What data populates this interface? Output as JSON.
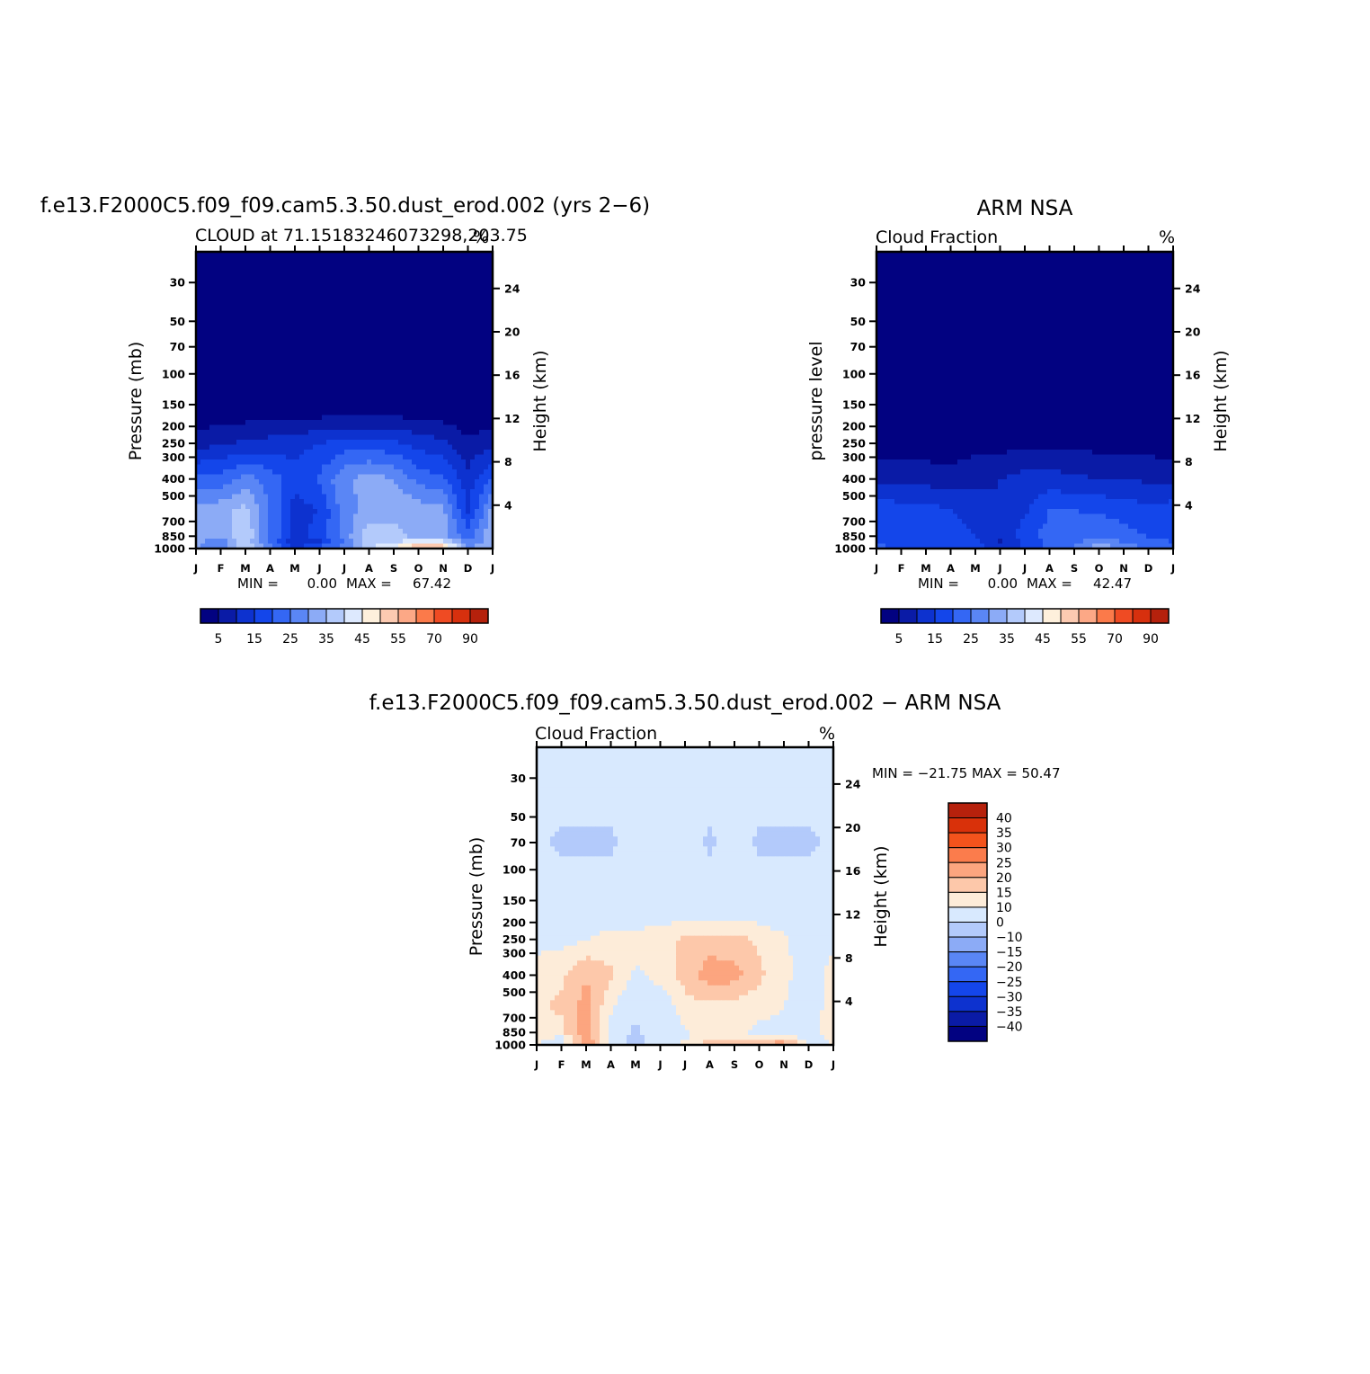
{
  "colors": {
    "cloud_scale": [
      "#020281",
      "#0a1ba6",
      "#0d32cf",
      "#1446ea",
      "#3467f4",
      "#5a86f5",
      "#8cabf6",
      "#b3cafb",
      "#dde9fe",
      "#fef0dc",
      "#fccab1",
      "#fca886",
      "#fb7a4a",
      "#ef4b23",
      "#d7300e",
      "#b5210c",
      "#8a0c06"
    ],
    "diff_scale": [
      "#020281",
      "#0a1ba6",
      "#0d32cf",
      "#1446ea",
      "#3467f4",
      "#5a86f5",
      "#8cabf6",
      "#b3cafb",
      "#d8e9fe",
      "#fdecd9",
      "#fdc8aa",
      "#fca57f",
      "#fb7c4c",
      "#f3531c",
      "#d9310a",
      "#b6210c",
      "#8a0c06"
    ]
  },
  "months": [
    "J",
    "F",
    "M",
    "A",
    "M",
    "J",
    "J",
    "A",
    "S",
    "O",
    "N",
    "D",
    "J"
  ],
  "pressure_ticks": [
    "30",
    "50",
    "70",
    "100",
    "150",
    "200",
    "250",
    "300",
    "400",
    "500",
    "700",
    "850",
    "1000"
  ],
  "height_ticks": [
    "24",
    "20",
    "16",
    "12",
    "8",
    "4"
  ],
  "panels": {
    "model": {
      "case_title": "f.e13.F2000C5.f09_f09.cam5.3.50.dust_erod.002 (yrs 2−6)",
      "left_label": "CLOUD at 71.15183246073298,203.75",
      "right_label": "%",
      "ylabel": "Pressure (mb)",
      "ylabel_right": "Height (km)",
      "min_label": "MIN =",
      "min_value": "0.00",
      "max_label": "MAX =",
      "max_value": "67.42",
      "cb_labels": [
        "5",
        "15",
        "25",
        "35",
        "45",
        "55",
        "70",
        "90"
      ]
    },
    "obs": {
      "case_title": "ARM NSA",
      "left_label": "Cloud Fraction",
      "right_label": "%",
      "ylabel": "pressure level",
      "ylabel_right": "Height (km)",
      "min_label": "MIN =",
      "min_value": "0.00",
      "max_label": "MAX =",
      "max_value": "42.47",
      "cb_labels": [
        "5",
        "15",
        "25",
        "35",
        "45",
        "55",
        "70",
        "90"
      ]
    },
    "diff": {
      "case_title": "f.e13.F2000C5.f09_f09.cam5.3.50.dust_erod.002 − ARM NSA",
      "left_label": "Cloud Fraction",
      "right_label": "%",
      "ylabel": "Pressure (mb)",
      "ylabel_right": "Height (km)",
      "stat_text": "MIN = −21.75 MAX =  50.47",
      "cb_labels": [
        "40",
        "35",
        "30",
        "25",
        "20",
        "15",
        "10",
        "0",
        "−10",
        "−15",
        "−20",
        "−25",
        "−30",
        "−35",
        "−40"
      ]
    }
  },
  "chart_data": [
    {
      "type": "heatmap",
      "title": "f.e13.F2000C5.f09_f09.cam5.3.50.dust_erod.002 (yrs 2−6)",
      "subtitle": "CLOUD at 71.15183246073298,203.75",
      "units": "%",
      "x": [
        "J",
        "F",
        "M",
        "A",
        "M",
        "J",
        "J",
        "A",
        "S",
        "O",
        "N",
        "D",
        "J"
      ],
      "ylabel": "Pressure (mb)",
      "ylabel_right": "Height (km)",
      "ylim": [
        1000,
        20
      ],
      "yscale": "log",
      "levels": [
        5,
        10,
        15,
        20,
        25,
        30,
        35,
        40,
        45,
        50,
        55,
        60,
        70,
        80,
        90,
        100
      ],
      "level_labels": [
        "5",
        "15",
        "25",
        "35",
        "45",
        "55",
        "70",
        "90"
      ],
      "min": 0.0,
      "max": 67.42,
      "pressure_levels": [
        30,
        70,
        150,
        250,
        400,
        600,
        850,
        950,
        1000
      ],
      "values": [
        [
          0,
          0,
          0,
          0,
          0,
          0,
          0,
          0,
          0,
          0,
          0,
          0,
          0
        ],
        [
          0,
          0,
          0,
          0,
          0,
          0,
          0,
          0,
          0,
          0,
          0,
          0,
          0
        ],
        [
          0,
          0,
          0,
          0,
          0,
          0,
          0,
          0,
          0,
          0,
          0,
          0,
          0
        ],
        [
          8,
          9,
          11,
          12,
          13,
          15,
          17,
          17,
          16,
          13,
          11,
          6,
          8
        ],
        [
          21,
          22,
          27,
          23,
          17,
          21,
          29,
          33,
          30,
          23,
          21,
          12,
          21
        ],
        [
          32,
          33,
          37,
          24,
          13,
          15,
          28,
          31,
          34,
          33,
          31,
          14,
          32
        ],
        [
          34,
          31,
          40,
          24,
          13,
          17,
          27,
          39,
          36,
          34,
          33,
          22,
          34
        ],
        [
          31,
          24,
          38,
          23,
          9,
          13,
          25,
          37,
          41,
          48,
          47,
          28,
          31
        ],
        [
          31,
          32,
          42,
          30,
          16,
          30,
          30,
          40,
          50,
          58,
          55,
          32,
          31
        ]
      ]
    },
    {
      "type": "heatmap",
      "title": "ARM NSA",
      "subtitle": "Cloud Fraction",
      "units": "%",
      "x": [
        "J",
        "F",
        "M",
        "A",
        "M",
        "J",
        "J",
        "A",
        "S",
        "O",
        "N",
        "D",
        "J"
      ],
      "ylabel": "pressure level",
      "ylabel_right": "Height (km)",
      "ylim": [
        1000,
        20
      ],
      "yscale": "log",
      "levels": [
        5,
        10,
        15,
        20,
        25,
        30,
        35,
        40,
        45,
        50,
        55,
        60,
        70,
        80,
        90,
        100
      ],
      "level_labels": [
        "5",
        "15",
        "25",
        "35",
        "45",
        "55",
        "70",
        "90"
      ],
      "min": 0.0,
      "max": 42.47,
      "pressure_levels": [
        30,
        70,
        150,
        250,
        400,
        600,
        850,
        950,
        1000
      ],
      "values": [
        [
          0,
          0,
          0,
          0,
          0,
          0,
          0,
          0,
          0,
          0,
          0,
          0,
          0
        ],
        [
          0,
          0,
          0,
          0,
          0,
          0,
          0,
          0,
          0,
          0,
          0,
          0,
          0
        ],
        [
          0,
          0,
          0,
          0,
          0,
          0,
          0,
          0,
          0,
          0,
          0,
          0,
          0
        ],
        [
          2,
          2,
          2,
          2,
          3,
          3,
          4,
          4,
          4,
          3,
          3,
          3,
          2
        ],
        [
          8,
          9,
          8,
          7,
          9,
          10,
          12,
          12,
          11,
          10,
          10,
          9,
          8
        ],
        [
          18,
          17,
          17,
          15,
          13,
          10,
          14,
          20,
          20,
          19,
          18,
          16,
          18
        ],
        [
          19,
          18,
          16,
          17,
          15,
          10,
          18,
          22,
          23,
          24,
          22,
          20,
          19
        ],
        [
          20,
          18,
          17,
          16,
          17,
          9,
          16,
          21,
          24,
          30,
          26,
          22,
          20
        ],
        [
          22,
          20,
          18,
          17,
          18,
          12,
          18,
          22,
          26,
          38,
          30,
          24,
          22
        ]
      ]
    },
    {
      "type": "heatmap",
      "title": "f.e13.F2000C5.f09_f09.cam5.3.50.dust_erod.002 − ARM NSA",
      "subtitle": "Cloud Fraction",
      "units": "%",
      "x": [
        "J",
        "F",
        "M",
        "A",
        "M",
        "J",
        "J",
        "A",
        "S",
        "O",
        "N",
        "D",
        "J"
      ],
      "ylabel": "Pressure (mb)",
      "ylabel_right": "Height (km)",
      "ylim": [
        1000,
        20
      ],
      "yscale": "log",
      "levels": [
        -40,
        -35,
        -30,
        -25,
        -20,
        -15,
        -10,
        0,
        10,
        15,
        20,
        25,
        30,
        35,
        40
      ],
      "level_labels": [
        "40",
        "35",
        "30",
        "25",
        "20",
        "15",
        "10",
        "0",
        "−10",
        "−15",
        "−20",
        "−25",
        "−30",
        "−35",
        "−40"
      ],
      "min": -21.75,
      "max": 50.47,
      "pressure_levels": [
        30,
        70,
        150,
        250,
        400,
        600,
        850,
        950,
        1000
      ],
      "values": [
        [
          3,
          3,
          3,
          3,
          3,
          3,
          3,
          3,
          3,
          3,
          3,
          3,
          3
        ],
        [
          1,
          -1,
          -1,
          -1,
          2,
          2,
          2,
          -1,
          2,
          -1,
          -1,
          -1,
          1
        ],
        [
          4,
          4,
          3,
          4,
          4,
          4,
          4,
          4,
          4,
          4,
          4,
          4,
          4
        ],
        [
          8,
          8,
          10,
          12,
          12,
          13,
          16,
          17,
          17,
          14,
          11,
          6,
          8
        ],
        [
          13,
          14,
          20,
          16,
          9,
          12,
          17,
          23,
          22,
          16,
          12,
          6,
          13
        ],
        [
          14,
          16,
          22,
          11,
          4,
          6,
          13,
          14,
          13,
          12,
          10,
          5,
          14
        ],
        [
          14,
          13,
          24,
          8,
          -2,
          7,
          9,
          13,
          13,
          8,
          9,
          6,
          14
        ],
        [
          11,
          6,
          22,
          7,
          -5,
          4,
          9,
          15,
          16,
          18,
          18,
          8,
          11
        ],
        [
          9,
          12,
          28,
          13,
          -6,
          18,
          12,
          18,
          24,
          20,
          25,
          10,
          9
        ]
      ]
    }
  ]
}
